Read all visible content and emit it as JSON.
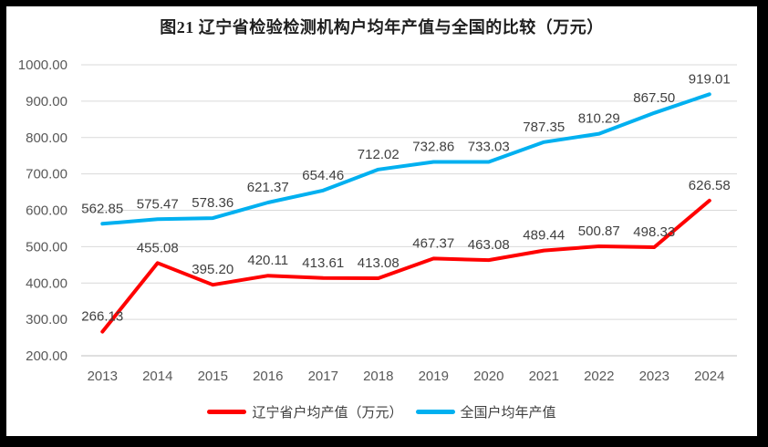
{
  "chart_data": {
    "type": "line",
    "title": "图21 辽宁省检验检测机构户均年产值与全国的比较（万元）",
    "categories": [
      "2013",
      "2014",
      "2015",
      "2016",
      "2017",
      "2018",
      "2019",
      "2020",
      "2021",
      "2022",
      "2023",
      "2024"
    ],
    "series": [
      {
        "name": "辽宁省户均产值（万元）",
        "color": "#ff0000",
        "values": [
          266.13,
          455.08,
          395.2,
          420.11,
          413.61,
          413.08,
          467.37,
          463.08,
          489.44,
          500.87,
          498.33,
          626.58
        ]
      },
      {
        "name": "全国户均年产值",
        "color": "#00b0f0",
        "values": [
          562.85,
          575.47,
          578.36,
          621.37,
          654.46,
          712.02,
          732.86,
          733.03,
          787.35,
          810.29,
          867.5,
          919.01
        ]
      }
    ],
    "ylim": [
      200,
      1000
    ],
    "ytick_step": 100,
    "ytick_format": "0.00",
    "grid": true,
    "data_labels": true,
    "legend_position": "bottom"
  },
  "style": {
    "axis_label_color": "#595959",
    "data_label_color": "#404040",
    "gridline_color": "#d9d9d9",
    "baseline_color": "#bfbfbf",
    "frame_border_color": "#000000"
  }
}
